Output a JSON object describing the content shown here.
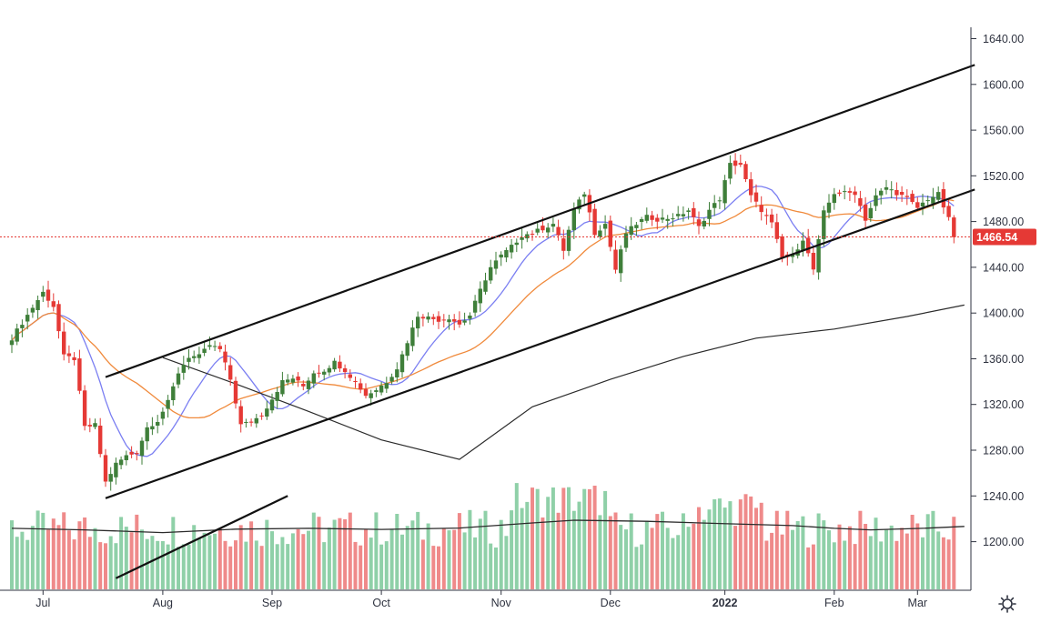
{
  "chart_data": {
    "type": "candlestick",
    "price_axis": {
      "ticks": [
        "1640.00",
        "1600.00",
        "1560.00",
        "1520.00",
        "1480.00",
        "1440.00",
        "1400.00",
        "1360.00",
        "1320.00",
        "1280.00",
        "1240.00",
        "1200.00"
      ],
      "range": [
        1168,
        1666
      ]
    },
    "time_axis": {
      "labels": [
        {
          "label": "Jul",
          "bar": 6
        },
        {
          "label": "Aug",
          "bar": 29
        },
        {
          "label": "Sep",
          "bar": 50
        },
        {
          "label": "Oct",
          "bar": 71
        },
        {
          "label": "Nov",
          "bar": 94
        },
        {
          "label": "Dec",
          "bar": 115
        },
        {
          "label": "2022",
          "bar": 137
        },
        {
          "label": "Feb",
          "bar": 158
        },
        {
          "label": "Mar",
          "bar": 174
        }
      ],
      "bar_count": 182
    },
    "last_price": {
      "label": "1466.54",
      "value": 1466.54
    },
    "colors": {
      "up": "#26a69a",
      "up_body": "#3f7f3a",
      "down": "#e53935",
      "vol_up": "#8fd0a8",
      "vol_down": "#ef8a8a",
      "ma_short": "#7b7ff2",
      "ma_mid": "#f08a3c",
      "ma_long": "#2b2b2b",
      "channel": "#111111",
      "axis": "#2f3340",
      "price_line": "#e53935"
    },
    "channel": {
      "upper": [
        [
          18,
          1344
        ],
        [
          185,
          1617
        ]
      ],
      "lower": [
        [
          18,
          1238
        ],
        [
          185,
          1508
        ]
      ],
      "extra_line": [
        [
          20,
          1168
        ],
        [
          53,
          1240
        ]
      ]
    },
    "ma_long": [
      [
        29,
        1361
      ],
      [
        43,
        1338
      ],
      [
        57,
        1314
      ],
      [
        71,
        1289
      ],
      [
        86,
        1272
      ],
      [
        100,
        1318
      ],
      [
        115,
        1342
      ],
      [
        129,
        1362
      ],
      [
        143,
        1378
      ],
      [
        158,
        1386
      ],
      [
        172,
        1397
      ],
      [
        183,
        1407
      ]
    ],
    "volume_ma": [
      [
        0,
        228
      ],
      [
        14,
        222
      ],
      [
        29,
        212
      ],
      [
        43,
        225
      ],
      [
        57,
        228
      ],
      [
        71,
        224
      ],
      [
        86,
        229
      ],
      [
        100,
        248
      ],
      [
        108,
        258
      ],
      [
        122,
        254
      ],
      [
        136,
        246
      ],
      [
        150,
        238
      ],
      [
        158,
        228
      ],
      [
        165,
        222
      ],
      [
        175,
        228
      ],
      [
        183,
        235
      ]
    ]
  }
}
